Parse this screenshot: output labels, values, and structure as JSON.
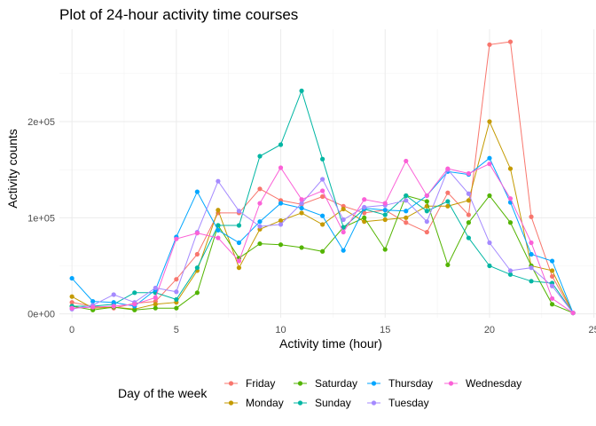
{
  "chart_data": {
    "type": "line",
    "title": "Plot of 24-hour activity time courses",
    "xlabel": "Activity time (hour)",
    "ylabel": "Activity counts",
    "xlim": [
      -0.6,
      25.1
    ],
    "ylim": [
      -4000,
      296000
    ],
    "x_ticks": [
      0,
      5,
      10,
      15,
      20,
      25
    ],
    "x_tick_labels": [
      "0",
      "5",
      "10",
      "15",
      "20",
      "25"
    ],
    "y_ticks": [
      0,
      100000,
      200000
    ],
    "y_tick_labels": [
      "0e+00",
      "1e+05",
      "2e+05"
    ],
    "grid": true,
    "legend": {
      "title": "Day of the week",
      "position": "bottom",
      "columns": [
        [
          "Friday",
          "Monday"
        ],
        [
          "Saturday",
          "Sunday"
        ],
        [
          "Thursday",
          "Tuesday"
        ],
        [
          "Wednesday"
        ]
      ]
    },
    "x": [
      0,
      1,
      2,
      3,
      4,
      5,
      6,
      7,
      8,
      9,
      10,
      11,
      12,
      13,
      14,
      15,
      16,
      17,
      18,
      19,
      20,
      21,
      22,
      23,
      24
    ],
    "series": [
      {
        "name": "Friday",
        "color": "#F8766D",
        "values": [
          12000,
          8000,
          6000,
          11000,
          13000,
          36000,
          62000,
          105000,
          105000,
          130000,
          118000,
          114000,
          122000,
          112000,
          105000,
          108000,
          95000,
          85000,
          126000,
          103000,
          280000,
          283000,
          101000,
          39000,
          1000
        ]
      },
      {
        "name": "Monday",
        "color": "#C49A00",
        "values": [
          18000,
          6000,
          7000,
          5000,
          10000,
          12000,
          45000,
          108000,
          48000,
          88000,
          97000,
          105000,
          93000,
          109000,
          96000,
          98000,
          100000,
          112000,
          112000,
          118000,
          200000,
          151000,
          50000,
          45000,
          1000
        ]
      },
      {
        "name": "Saturday",
        "color": "#53B400",
        "values": [
          8000,
          4000,
          7000,
          4000,
          6000,
          6000,
          22000,
          92000,
          58000,
          73000,
          72000,
          69000,
          65000,
          90000,
          100000,
          67000,
          123000,
          117000,
          51000,
          95000,
          123000,
          95000,
          50000,
          10000,
          1000
        ]
      },
      {
        "name": "Sunday",
        "color": "#00B6A3",
        "values": [
          8000,
          8000,
          10000,
          22000,
          22000,
          15000,
          48000,
          92000,
          92000,
          164000,
          176000,
          232000,
          161000,
          90000,
          109000,
          103000,
          123000,
          107000,
          117000,
          79000,
          50000,
          41000,
          34000,
          32000,
          1000
        ]
      },
      {
        "name": "Thursday",
        "color": "#00A6FF",
        "values": [
          37000,
          13000,
          12000,
          8000,
          25000,
          80000,
          127000,
          87000,
          74000,
          96000,
          115000,
          110000,
          102000,
          66000,
          110000,
          108000,
          107000,
          123000,
          148000,
          145000,
          162000,
          116000,
          62000,
          55000,
          1000
        ]
      },
      {
        "name": "Tuesday",
        "color": "#A58AFF",
        "values": [
          5000,
          9000,
          20000,
          12000,
          27000,
          23000,
          85000,
          138000,
          107000,
          91000,
          93000,
          115000,
          140000,
          98000,
          111000,
          113000,
          118000,
          96000,
          150000,
          125000,
          74000,
          45000,
          48000,
          29000,
          1000
        ]
      },
      {
        "name": "Wednesday",
        "color": "#FB61D7",
        "values": [
          6000,
          7000,
          8000,
          10000,
          17000,
          78000,
          84000,
          79000,
          55000,
          115000,
          152000,
          119000,
          128000,
          85000,
          119000,
          115000,
          159000,
          123000,
          151000,
          146000,
          156000,
          120000,
          74000,
          16000,
          1000
        ]
      }
    ]
  }
}
